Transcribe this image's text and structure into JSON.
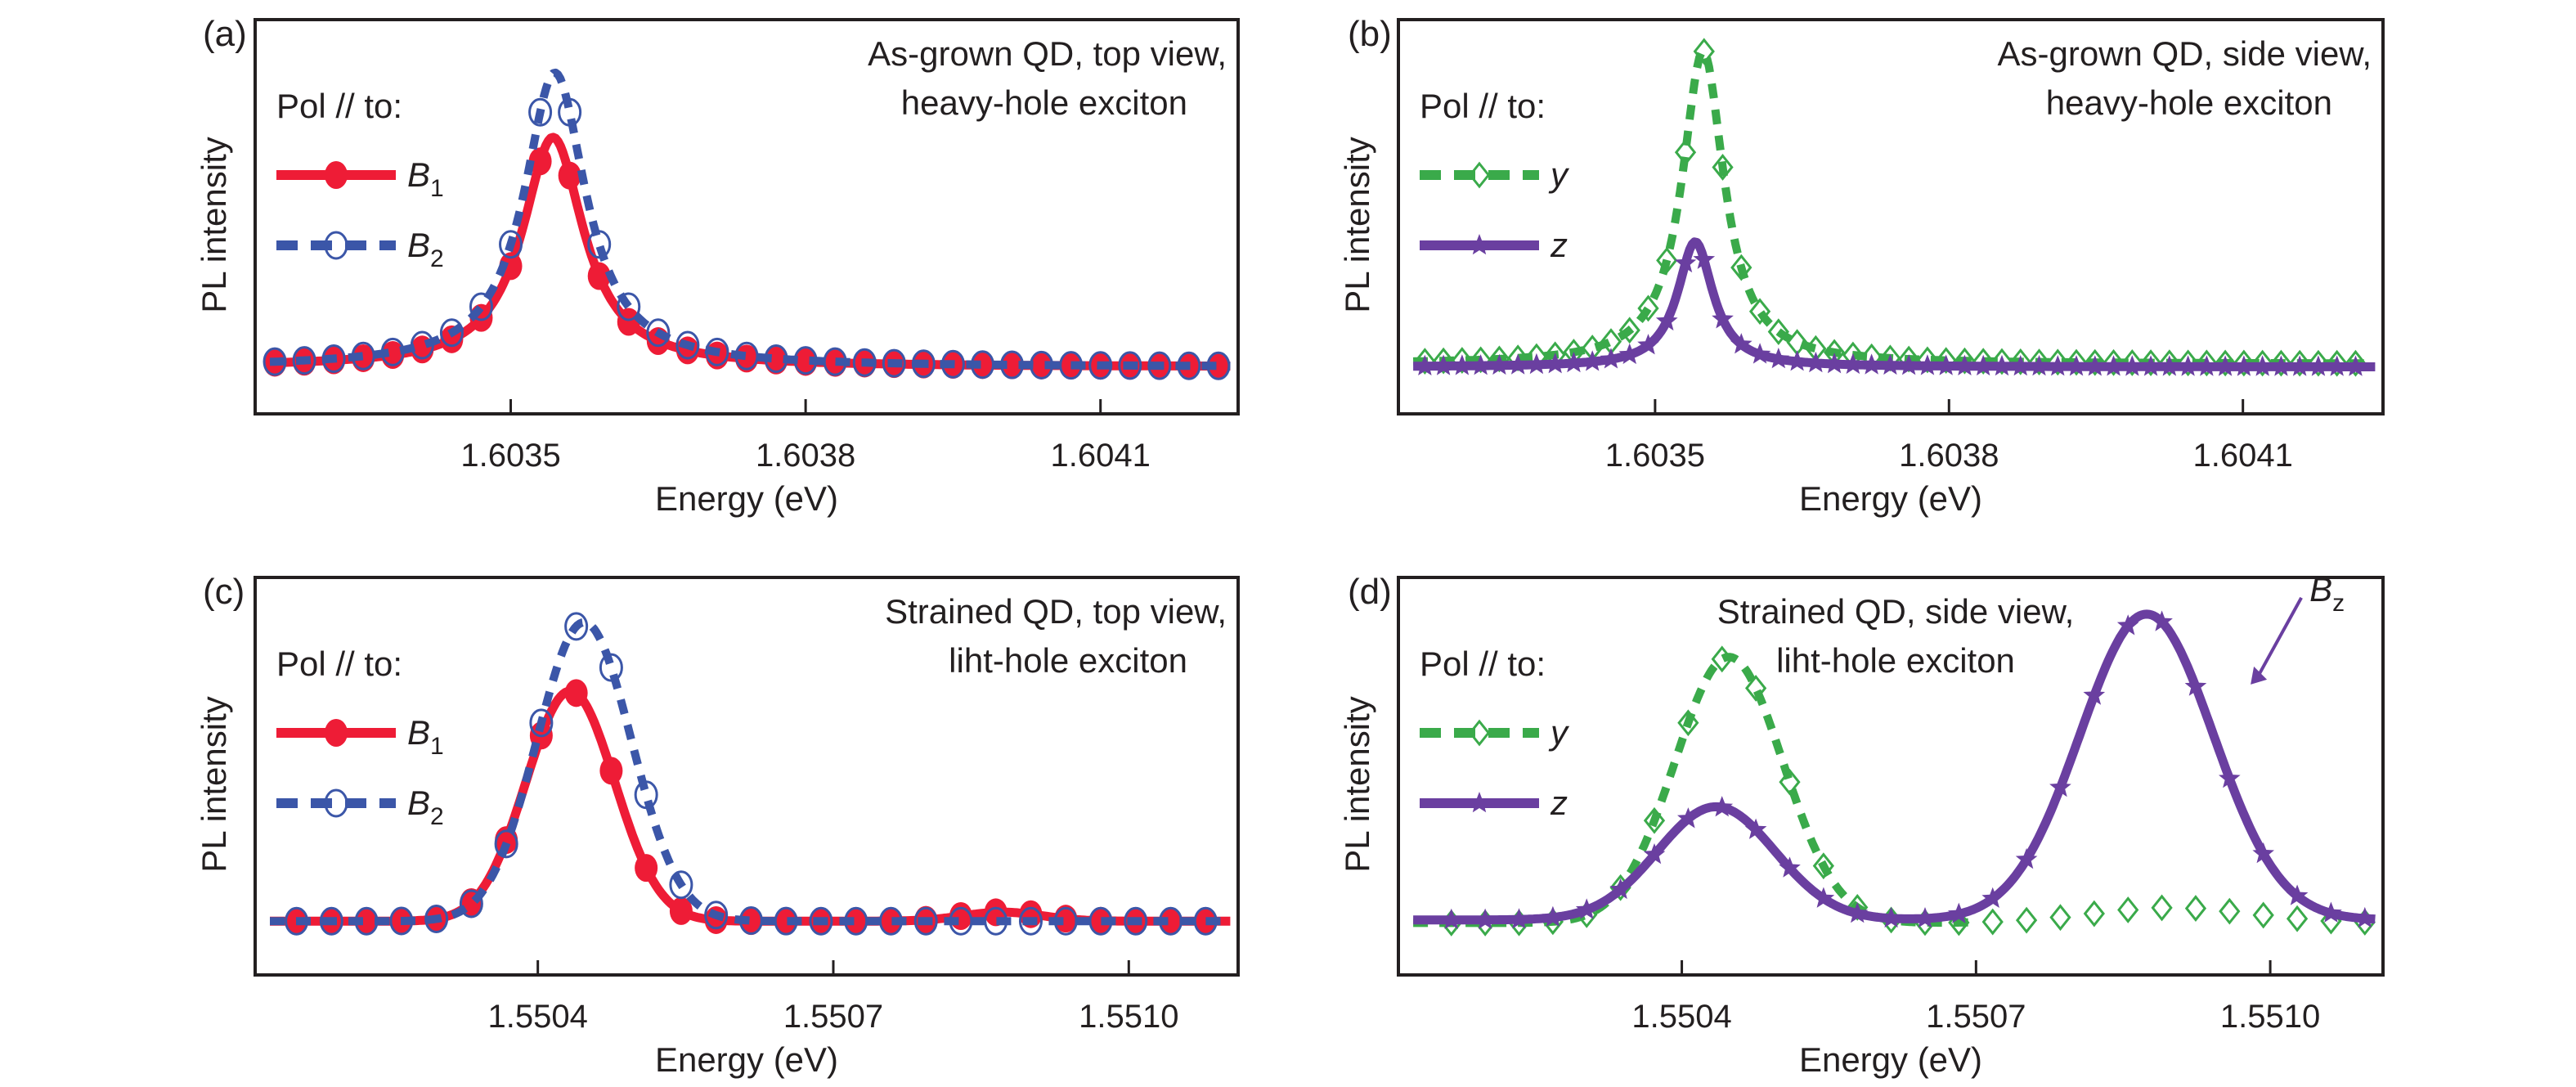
{
  "figure": {
    "colors": {
      "red": "#EE1C36",
      "blue": "#3B56A8",
      "green": "#3AAA4A",
      "purple": "#6A3FA0",
      "text": "#231F20"
    }
  },
  "chart_data": [
    {
      "id": "a",
      "type": "line",
      "panel_label": "(a)",
      "annotation": [
        "As-grown QD, top view,",
        "heavy-hole exciton"
      ],
      "xlabel": "Energy (eV)",
      "ylabel": "PL intensity",
      "xlim": [
        1.60324,
        1.60424
      ],
      "ylim": [
        -0.16,
        1.18
      ],
      "xticks": [
        1.6035,
        1.6038,
        1.6041
      ],
      "xtick_labels": [
        "1.6035",
        "1.6038",
        "1.6041"
      ],
      "yticks": [],
      "grid": false,
      "legend": {
        "title": "Pol // to:",
        "placement": "left"
      },
      "series": [
        {
          "name": "B1",
          "label_main": "B",
          "label_sub": "1",
          "color": "red",
          "line": "solid",
          "marker": "filled-circle",
          "peak": {
            "center": 1.603543,
            "amplitude": 0.78,
            "hwhm": 3.8e-05,
            "shape": "lorentzian"
          },
          "x_start": 1.60326,
          "x_step": 3e-05,
          "n_points": 33,
          "baseline": 0.0
        },
        {
          "name": "B2",
          "label_main": "B",
          "label_sub": "2",
          "color": "blue",
          "line": "dashed",
          "marker": "open-circle",
          "peak": {
            "center": 1.603545,
            "amplitude": 1.0,
            "hwhm": 3.8e-05,
            "shape": "lorentzian"
          },
          "x_start": 1.60326,
          "x_step": 3e-05,
          "n_points": 33,
          "baseline": 0.0
        }
      ]
    },
    {
      "id": "b",
      "type": "line",
      "panel_label": "(b)",
      "annotation": [
        "As-grown QD, side view,",
        "heavy-hole exciton"
      ],
      "xlabel": "Energy (eV)",
      "ylabel": "PL intensity",
      "xlim": [
        1.603238,
        1.604243
      ],
      "ylim": [
        -0.15,
        1.11
      ],
      "xticks": [
        1.6035,
        1.6038,
        1.6041
      ],
      "xtick_labels": [
        "1.6035",
        "1.6038",
        "1.6041"
      ],
      "yticks": [],
      "grid": false,
      "legend": {
        "title": "Pol // to:",
        "placement": "left"
      },
      "series": [
        {
          "name": "y",
          "label_main": "y",
          "label_sub": "",
          "color": "green",
          "line": "dashed",
          "marker": "open-diamond",
          "peak": {
            "center": 1.603549,
            "amplitude": 1.0,
            "hwhm": 2.6e-05,
            "shape": "lorentzian"
          },
          "x_start": 1.603265,
          "x_step": 1.9e-05,
          "n_points": 51,
          "baseline": 0.01
        },
        {
          "name": "z",
          "label_main": "z",
          "label_sub": "",
          "color": "purple",
          "line": "solid",
          "marker": "filled-star",
          "peak": {
            "center": 1.603541,
            "amplitude": 0.4,
            "hwhm": 2.2e-05,
            "shape": "lorentzian"
          },
          "x_start": 1.603265,
          "x_step": 1.9e-05,
          "n_points": 51,
          "baseline": 0.0
        }
      ]
    },
    {
      "id": "c",
      "type": "line",
      "panel_label": "(c)",
      "annotation": [
        "Strained QD, top view,",
        "liht-hole exciton"
      ],
      "xlabel": "Energy (eV)",
      "ylabel": "PL intensity",
      "xlim": [
        1.550113,
        1.551111
      ],
      "ylim": [
        -0.18,
        1.15
      ],
      "xticks": [
        1.5504,
        1.5507,
        1.551
      ],
      "xtick_labels": [
        "1.5504",
        "1.5507",
        "1.5510"
      ],
      "yticks": [],
      "grid": false,
      "legend": {
        "title": "Pol // to:",
        "placement": "left"
      },
      "series": [
        {
          "name": "B1",
          "label_main": "B",
          "label_sub": "1",
          "color": "red",
          "line": "solid",
          "marker": "filled-circle",
          "peak": {
            "center": 1.550433,
            "amplitude": 0.77,
            "sigma": 4.5e-05,
            "shape": "gaussian"
          },
          "x_start": 1.550155,
          "x_step": 3.55e-05,
          "n_points": 27,
          "baseline": 0.0,
          "extra_bump": {
            "center": 1.550872,
            "amplitude": 0.03,
            "sigma": 4e-05
          }
        },
        {
          "name": "B2",
          "label_main": "B",
          "label_sub": "2",
          "color": "blue",
          "line": "dashed",
          "marker": "open-circle",
          "peak": {
            "center": 1.550447,
            "amplitude": 1.0,
            "sigma": 4.8e-05,
            "shape": "gaussian"
          },
          "x_start": 1.550155,
          "x_step": 3.55e-05,
          "n_points": 27,
          "baseline": 0.0
        }
      ]
    },
    {
      "id": "d",
      "type": "line",
      "panel_label": "(d)",
      "annotation": [
        "Strained QD, side view,",
        "liht-hole exciton"
      ],
      "annotation_arrow": {
        "label_main": "B",
        "label_sub": "z",
        "points_to_series": "z",
        "target_x": 1.55098,
        "target_y": 0.77
      },
      "xlabel": "Energy (eV)",
      "ylabel": "PL intensity",
      "xlim": [
        1.550111,
        1.551115
      ],
      "ylim": [
        -0.18,
        1.12
      ],
      "xticks": [
        1.5504,
        1.5507,
        1.551
      ],
      "xtick_labels": [
        "1.5504",
        "1.5507",
        "1.5510"
      ],
      "yticks": [],
      "grid": false,
      "legend": {
        "title": "Pol // to:",
        "placement": "left"
      },
      "series": [
        {
          "name": "y",
          "label_main": "y",
          "label_sub": "",
          "color": "green",
          "line": "dashed",
          "marker": "open-diamond",
          "peak": {
            "center": 1.550448,
            "amplitude": 0.87,
            "sigma": 5.5e-05,
            "shape": "gaussian"
          },
          "x_start": 1.550165,
          "x_step": 3.45e-05,
          "n_points": 28,
          "baseline": -0.01,
          "extra_bump": {
            "center": 1.5509,
            "amplitude": 0.05,
            "sigma": 8e-05
          },
          "line_x_max": 1.5507
        },
        {
          "name": "z",
          "label_main": "z",
          "label_sub": "",
          "color": "purple",
          "line": "solid",
          "marker": "filled-star",
          "peak": {
            "center": 1.550435,
            "amplitude": 0.37,
            "sigma": 6e-05,
            "shape": "gaussian"
          },
          "second_peak": {
            "center": 1.550874,
            "amplitude": 1.0,
            "sigma": 6.8e-05
          },
          "x_start": 1.550165,
          "x_step": 3.45e-05,
          "n_points": 28,
          "baseline": 0.0
        }
      ]
    }
  ]
}
